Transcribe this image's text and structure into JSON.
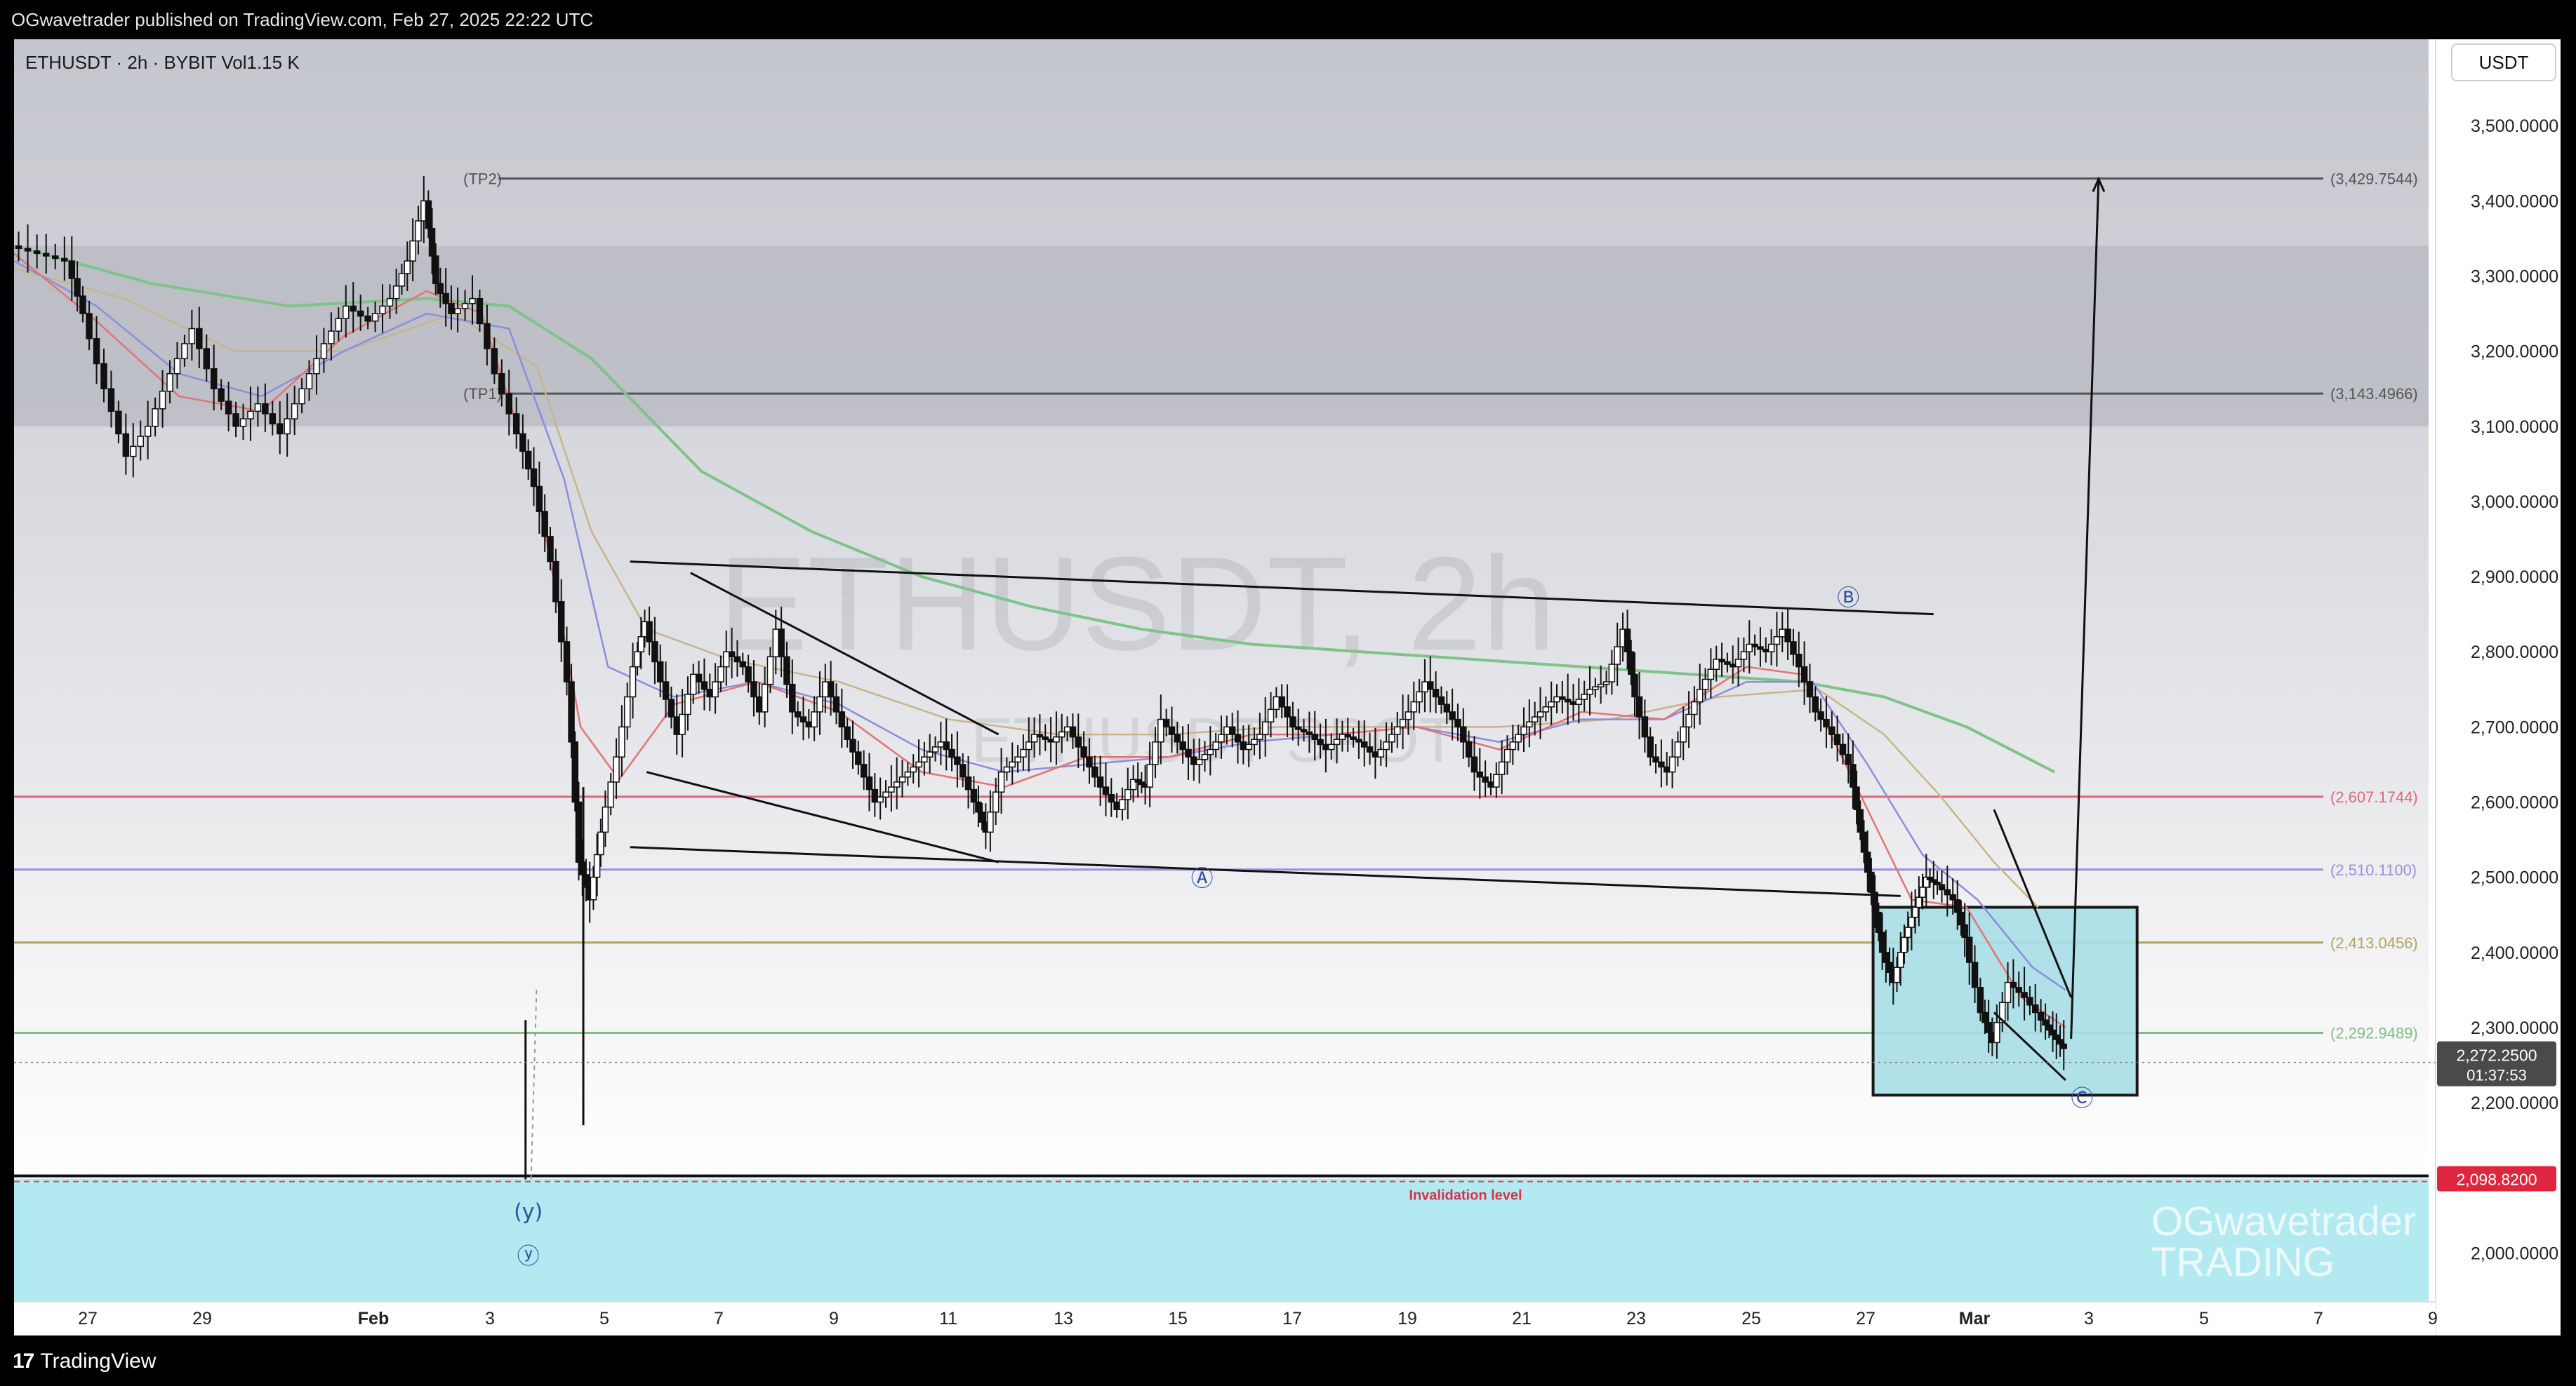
{
  "header": {
    "published": "OGwavetrader published on TradingView.com, Feb 27, 2025 22:22 UTC"
  },
  "legend": {
    "symbol": "ETHUSDT · 2h · BYBIT",
    "volume": "Vol1.15 K"
  },
  "currency_button": "USDT",
  "watermark": {
    "title": "ETHUSDT, 2h",
    "subtitle": "ETHUSDT SPOT",
    "brand_line1": "OGwavetrader",
    "brand_line2": "TRADING"
  },
  "footer": {
    "brand": "TradingView"
  },
  "colors": {
    "background": "#ffffff",
    "resistance_zone": "#b7b8c0",
    "target_box": "#a9dfe7",
    "invalidation_zone": "#b3e9f0",
    "candle": "#111111",
    "ema_fast": "#e57373",
    "ema_mid": "#8c8ce0",
    "ema_slow": "#c9b48a",
    "ma_long": "#7fc28a"
  },
  "chart_data": {
    "type": "candlestick",
    "timeframe": "2h",
    "x_ticks": [
      "27",
      "29",
      "Feb",
      "3",
      "5",
      "7",
      "9",
      "11",
      "13",
      "15",
      "17",
      "19",
      "21",
      "23",
      "25",
      "27",
      "Mar",
      "3",
      "5",
      "7",
      "9"
    ],
    "y_ticks": [
      "3,500.0000",
      "3,400.0000",
      "3,300.0000",
      "3,200.0000",
      "3,100.0000",
      "3,000.0000",
      "2,900.0000",
      "2,800.0000",
      "2,700.0000",
      "2,600.0000",
      "2,500.0000",
      "2,400.0000",
      "2,300.0000",
      "2,200.0000",
      "2,000.0000"
    ],
    "y_tick_values": [
      3500,
      3400,
      3300,
      3200,
      3100,
      3000,
      2900,
      2800,
      2700,
      2600,
      2500,
      2400,
      2300,
      2200,
      2000
    ],
    "ylim": [
      1935,
      3615
    ],
    "price_levels": [
      {
        "label": "(TP2)",
        "value_label": "(3,429.7544)",
        "value": 3429.7544,
        "color": "#555555"
      },
      {
        "label": "(TP1)",
        "value_label": "(3,143.4966)",
        "value": 3143.4966,
        "color": "#555555"
      },
      {
        "label": "",
        "value_label": "(2,607.1744)",
        "value": 2607.1744,
        "color": "#e0667a"
      },
      {
        "label": "",
        "value_label": "(2,510.1100)",
        "value": 2510.11,
        "color": "#a08ce0"
      },
      {
        "label": "",
        "value_label": "(2,413.0456)",
        "value": 2413.0456,
        "color": "#b0a45a"
      },
      {
        "label": "",
        "value_label": "(2,292.9489)",
        "value": 2292.9489,
        "color": "#7fbf85"
      }
    ],
    "current_price": {
      "value": 2272.25,
      "label": "2,272.2500",
      "countdown": "01:37:53"
    },
    "invalidation": {
      "value": 2098.82,
      "label": "2,098.8200",
      "text": "Invalidation level"
    },
    "resistance_zone": [
      3100,
      3340
    ],
    "target_box": [
      2210,
      2460
    ],
    "wave_labels": [
      {
        "text": "Ⓐ",
        "x": 10.2,
        "y": 2498
      },
      {
        "text": "Ⓑ",
        "x": 23.9,
        "y": 2871
      },
      {
        "text": "Ⓒ",
        "x": 27.9,
        "y": 2205
      },
      {
        "text": "(y)",
        "x": 3.0,
        "y": 2055
      },
      {
        "text": "ⓨ",
        "x": 3.0,
        "y": 1995
      }
    ],
    "price_path": [
      [
        25.5,
        3340
      ],
      [
        26.0,
        3330
      ],
      [
        26.5,
        3320
      ],
      [
        26.8,
        3250
      ],
      [
        27.2,
        3150
      ],
      [
        27.6,
        3060
      ],
      [
        28.0,
        3100
      ],
      [
        28.4,
        3170
      ],
      [
        28.8,
        3230
      ],
      [
        29.2,
        3150
      ],
      [
        29.6,
        3100
      ],
      [
        30.0,
        3130
      ],
      [
        30.4,
        3090
      ],
      [
        30.8,
        3150
      ],
      [
        31.2,
        3210
      ],
      [
        31.6,
        3260
      ],
      [
        32.0,
        3240
      ],
      [
        32.4,
        3270
      ],
      [
        32.7,
        3320
      ],
      [
        33.0,
        3400
      ],
      [
        33.2,
        3290
      ],
      [
        33.5,
        3250
      ],
      [
        33.9,
        3270
      ],
      [
        34.3,
        3170
      ],
      [
        34.7,
        3090
      ],
      [
        35.0,
        3020
      ],
      [
        35.3,
        2920
      ],
      [
        35.6,
        2760
      ],
      [
        35.8,
        2520
      ],
      [
        36.0,
        2470
      ],
      [
        36.2,
        2560
      ],
      [
        36.5,
        2660
      ],
      [
        36.8,
        2780
      ],
      [
        37.0,
        2840
      ],
      [
        37.3,
        2760
      ],
      [
        37.6,
        2690
      ],
      [
        37.9,
        2770
      ],
      [
        38.2,
        2740
      ],
      [
        38.5,
        2800
      ],
      [
        38.8,
        2780
      ],
      [
        39.1,
        2720
      ],
      [
        39.4,
        2830
      ],
      [
        39.7,
        2720
      ],
      [
        40.0,
        2700
      ],
      [
        40.3,
        2760
      ],
      [
        40.6,
        2700
      ],
      [
        40.9,
        2650
      ],
      [
        41.2,
        2600
      ],
      [
        41.5,
        2620
      ],
      [
        41.8,
        2640
      ],
      [
        42.1,
        2660
      ],
      [
        42.4,
        2680
      ],
      [
        42.7,
        2650
      ],
      [
        43.0,
        2600
      ],
      [
        43.2,
        2560
      ],
      [
        43.5,
        2640
      ],
      [
        43.8,
        2660
      ],
      [
        44.1,
        2690
      ],
      [
        44.4,
        2680
      ],
      [
        44.7,
        2700
      ],
      [
        45.0,
        2660
      ],
      [
        45.3,
        2620
      ],
      [
        45.6,
        2590
      ],
      [
        45.9,
        2630
      ],
      [
        46.1,
        2620
      ],
      [
        46.4,
        2710
      ],
      [
        46.7,
        2680
      ],
      [
        47.0,
        2650
      ],
      [
        47.3,
        2670
      ],
      [
        47.6,
        2700
      ],
      [
        47.9,
        2670
      ],
      [
        48.2,
        2690
      ],
      [
        48.5,
        2740
      ],
      [
        48.8,
        2700
      ],
      [
        49.1,
        2690
      ],
      [
        49.4,
        2670
      ],
      [
        49.7,
        2690
      ],
      [
        50.0,
        2680
      ],
      [
        50.3,
        2660
      ],
      [
        50.6,
        2690
      ],
      [
        50.9,
        2720
      ],
      [
        51.2,
        2760
      ],
      [
        51.5,
        2730
      ],
      [
        51.8,
        2700
      ],
      [
        52.1,
        2640
      ],
      [
        52.4,
        2620
      ],
      [
        52.7,
        2670
      ],
      [
        53.0,
        2700
      ],
      [
        53.3,
        2720
      ],
      [
        53.6,
        2740
      ],
      [
        53.9,
        2730
      ],
      [
        54.2,
        2750
      ],
      [
        54.5,
        2760
      ],
      [
        54.8,
        2830
      ],
      [
        55.0,
        2740
      ],
      [
        55.3,
        2660
      ],
      [
        55.6,
        2640
      ],
      [
        55.9,
        2700
      ],
      [
        56.2,
        2750
      ],
      [
        56.5,
        2790
      ],
      [
        56.8,
        2780
      ],
      [
        57.1,
        2810
      ],
      [
        57.4,
        2800
      ],
      [
        57.7,
        2830
      ],
      [
        58.0,
        2780
      ],
      [
        58.3,
        2720
      ],
      [
        58.6,
        2690
      ],
      [
        58.9,
        2650
      ],
      [
        59.1,
        2560
      ],
      [
        59.3,
        2480
      ],
      [
        59.5,
        2400
      ],
      [
        59.7,
        2360
      ],
      [
        59.9,
        2420
      ],
      [
        60.1,
        2460
      ],
      [
        60.3,
        2500
      ],
      [
        60.5,
        2490
      ],
      [
        60.8,
        2470
      ],
      [
        61.0,
        2420
      ],
      [
        61.3,
        2320
      ],
      [
        61.5,
        2280
      ],
      [
        61.8,
        2360
      ],
      [
        62.1,
        2340
      ],
      [
        62.4,
        2310
      ],
      [
        62.6,
        2290
      ],
      [
        62.8,
        2272
      ]
    ],
    "ema_fast": [
      [
        25.5,
        3330
      ],
      [
        27.0,
        3240
      ],
      [
        28.5,
        3140
      ],
      [
        30.0,
        3120
      ],
      [
        31.5,
        3220
      ],
      [
        33.0,
        3280
      ],
      [
        34.0,
        3250
      ],
      [
        35.0,
        3020
      ],
      [
        35.8,
        2700
      ],
      [
        36.5,
        2630
      ],
      [
        37.5,
        2730
      ],
      [
        39.0,
        2760
      ],
      [
        40.5,
        2720
      ],
      [
        42.0,
        2640
      ],
      [
        43.5,
        2620
      ],
      [
        45.0,
        2660
      ],
      [
        46.5,
        2660
      ],
      [
        48.0,
        2690
      ],
      [
        49.5,
        2690
      ],
      [
        51.0,
        2700
      ],
      [
        52.5,
        2670
      ],
      [
        54.0,
        2720
      ],
      [
        55.5,
        2710
      ],
      [
        57.0,
        2780
      ],
      [
        58.0,
        2770
      ],
      [
        59.0,
        2620
      ],
      [
        60.0,
        2470
      ],
      [
        61.0,
        2460
      ],
      [
        62.0,
        2340
      ],
      [
        62.8,
        2300
      ]
    ],
    "ema_mid": [
      [
        25.5,
        3320
      ],
      [
        27.0,
        3260
      ],
      [
        28.5,
        3170
      ],
      [
        30.0,
        3140
      ],
      [
        31.5,
        3200
      ],
      [
        33.0,
        3250
      ],
      [
        34.5,
        3230
      ],
      [
        35.5,
        3030
      ],
      [
        36.3,
        2780
      ],
      [
        37.5,
        2740
      ],
      [
        39.0,
        2760
      ],
      [
        40.5,
        2730
      ],
      [
        42.0,
        2670
      ],
      [
        43.5,
        2640
      ],
      [
        45.0,
        2650
      ],
      [
        46.5,
        2660
      ],
      [
        48.0,
        2680
      ],
      [
        49.5,
        2690
      ],
      [
        51.0,
        2700
      ],
      [
        52.5,
        2680
      ],
      [
        54.0,
        2710
      ],
      [
        55.5,
        2710
      ],
      [
        57.0,
        2760
      ],
      [
        58.2,
        2760
      ],
      [
        59.2,
        2650
      ],
      [
        60.2,
        2530
      ],
      [
        61.2,
        2470
      ],
      [
        62.2,
        2380
      ],
      [
        62.8,
        2350
      ]
    ],
    "ema_slow": [
      [
        25.5,
        3310
      ],
      [
        27.5,
        3270
      ],
      [
        29.5,
        3200
      ],
      [
        31.5,
        3200
      ],
      [
        33.5,
        3250
      ],
      [
        35.0,
        3180
      ],
      [
        36.0,
        2960
      ],
      [
        37.0,
        2830
      ],
      [
        38.5,
        2790
      ],
      [
        40.5,
        2760
      ],
      [
        42.5,
        2710
      ],
      [
        44.5,
        2690
      ],
      [
        46.5,
        2690
      ],
      [
        48.5,
        2700
      ],
      [
        50.5,
        2700
      ],
      [
        52.5,
        2700
      ],
      [
        54.5,
        2710
      ],
      [
        56.5,
        2740
      ],
      [
        58.3,
        2750
      ],
      [
        59.5,
        2690
      ],
      [
        60.5,
        2610
      ],
      [
        61.5,
        2520
      ],
      [
        62.3,
        2460
      ]
    ],
    "ma_long": [
      [
        25.5,
        3340
      ],
      [
        28.0,
        3290
      ],
      [
        30.5,
        3260
      ],
      [
        33.0,
        3270
      ],
      [
        34.5,
        3260
      ],
      [
        36.0,
        3190
      ],
      [
        38.0,
        3040
      ],
      [
        40.0,
        2960
      ],
      [
        42.0,
        2900
      ],
      [
        44.0,
        2860
      ],
      [
        46.0,
        2830
      ],
      [
        48.0,
        2810
      ],
      [
        50.0,
        2800
      ],
      [
        52.0,
        2790
      ],
      [
        54.0,
        2780
      ],
      [
        56.0,
        2770
      ],
      [
        58.0,
        2760
      ],
      [
        59.5,
        2740
      ],
      [
        61.0,
        2700
      ],
      [
        62.6,
        2640
      ]
    ],
    "trendlines": [
      [
        [
          36.7,
          2920
        ],
        [
          60.4,
          2850
        ]
      ],
      [
        [
          36.7,
          2540
        ],
        [
          59.8,
          2475
        ]
      ],
      [
        [
          37.8,
          2905
        ],
        [
          43.4,
          2690
        ]
      ],
      [
        [
          37.0,
          2640
        ],
        [
          43.4,
          2520
        ]
      ],
      [
        [
          61.5,
          2590
        ],
        [
          62.9,
          2340
        ]
      ],
      [
        [
          61.5,
          2320
        ],
        [
          62.8,
          2230
        ]
      ],
      [
        [
          62.9,
          2285
        ],
        [
          63.4,
          3429
        ]
      ]
    ],
    "time_axis": {
      "start": 25.5,
      "end": 69.4,
      "note": "days since Jan 1 2025 offset; Feb 3 = 34"
    }
  }
}
